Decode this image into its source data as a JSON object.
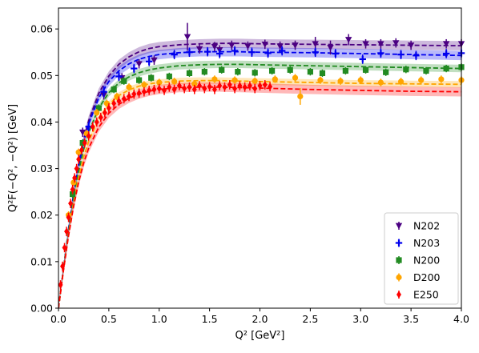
{
  "chart_data": {
    "type": "scatter",
    "title": "",
    "xlabel": "Q² [GeV²]",
    "ylabel": "Q²F(−Q², −Q²) [GeV]",
    "xlim": [
      0.0,
      4.0
    ],
    "ylim": [
      0.0,
      0.0645
    ],
    "xticks": [
      "0.0",
      "0.5",
      "1.0",
      "1.5",
      "2.0",
      "2.5",
      "3.0",
      "3.5",
      "4.0"
    ],
    "yticks": [
      "0.00",
      "0.01",
      "0.02",
      "0.03",
      "0.04",
      "0.05",
      "0.06"
    ],
    "grid": false,
    "legend_position": "lower-right",
    "series": [
      {
        "name": "N202",
        "color": "#4b0082",
        "marker": "triangle-down",
        "points": [
          [
            0.24,
            0.0378
          ],
          [
            0.45,
            0.0458
          ],
          [
            0.63,
            0.0495
          ],
          [
            0.8,
            0.0525
          ],
          [
            0.95,
            0.0533
          ],
          [
            1.28,
            0.0583
          ],
          [
            1.4,
            0.0557
          ],
          [
            1.55,
            0.0562
          ],
          [
            1.6,
            0.0555
          ],
          [
            1.72,
            0.0565
          ],
          [
            1.88,
            0.0563
          ],
          [
            2.05,
            0.0567
          ],
          [
            2.2,
            0.0563
          ],
          [
            2.35,
            0.0565
          ],
          [
            2.55,
            0.0568
          ],
          [
            2.7,
            0.056
          ],
          [
            2.88,
            0.0577
          ],
          [
            3.05,
            0.0568
          ],
          [
            3.2,
            0.0568
          ],
          [
            3.35,
            0.057
          ],
          [
            3.5,
            0.0565
          ],
          [
            3.85,
            0.0568
          ],
          [
            4.0,
            0.0568
          ]
        ],
        "errors": [
          0.001,
          0.001,
          0.001,
          0.001,
          0.001,
          0.003,
          0.001,
          0.001,
          0.001,
          0.001,
          0.001,
          0.001,
          0.001,
          0.001,
          0.0015,
          0.0015,
          0.0012,
          0.001,
          0.001,
          0.001,
          0.001,
          0.001,
          0.001
        ],
        "fit": [
          [
            0.0,
            0.0
          ],
          [
            0.05,
            0.0085
          ],
          [
            0.1,
            0.017
          ],
          [
            0.15,
            0.0245
          ],
          [
            0.2,
            0.031
          ],
          [
            0.25,
            0.0362
          ],
          [
            0.3,
            0.0403
          ],
          [
            0.4,
            0.0462
          ],
          [
            0.5,
            0.0499
          ],
          [
            0.6,
            0.0524
          ],
          [
            0.7,
            0.054
          ],
          [
            0.8,
            0.0551
          ],
          [
            0.9,
            0.0558
          ],
          [
            1.0,
            0.0562
          ],
          [
            1.2,
            0.0566
          ],
          [
            1.4,
            0.0568
          ],
          [
            1.6,
            0.0569
          ],
          [
            1.8,
            0.0569
          ],
          [
            2.0,
            0.0568
          ],
          [
            2.5,
            0.0567
          ],
          [
            3.0,
            0.0566
          ],
          [
            3.5,
            0.0565
          ],
          [
            4.0,
            0.0564
          ]
        ],
        "band": 0.001
      },
      {
        "name": "N203",
        "color": "#0000ee",
        "marker": "plus",
        "points": [
          [
            0.3,
            0.039
          ],
          [
            0.45,
            0.0465
          ],
          [
            0.6,
            0.0498
          ],
          [
            0.75,
            0.0515
          ],
          [
            0.9,
            0.053
          ],
          [
            1.15,
            0.0545
          ],
          [
            1.3,
            0.055
          ],
          [
            1.48,
            0.0551
          ],
          [
            1.6,
            0.0547
          ],
          [
            1.75,
            0.0553
          ],
          [
            1.92,
            0.055
          ],
          [
            2.08,
            0.0548
          ],
          [
            2.22,
            0.0553
          ],
          [
            2.55,
            0.055
          ],
          [
            2.75,
            0.0547
          ],
          [
            3.02,
            0.0535
          ],
          [
            3.2,
            0.0548
          ],
          [
            3.4,
            0.0545
          ],
          [
            3.55,
            0.0543
          ],
          [
            3.85,
            0.0547
          ],
          [
            4.0,
            0.0548
          ]
        ],
        "errors": [
          0.001,
          0.0012,
          0.001,
          0.001,
          0.001,
          0.001,
          0.001,
          0.001,
          0.001,
          0.001,
          0.001,
          0.001,
          0.001,
          0.001,
          0.001,
          0.001,
          0.001,
          0.001,
          0.001,
          0.001,
          0.001
        ],
        "fit": [
          [
            0.0,
            0.0
          ],
          [
            0.05,
            0.0085
          ],
          [
            0.1,
            0.0168
          ],
          [
            0.15,
            0.0242
          ],
          [
            0.2,
            0.0305
          ],
          [
            0.25,
            0.0356
          ],
          [
            0.3,
            0.0396
          ],
          [
            0.4,
            0.0452
          ],
          [
            0.5,
            0.0487
          ],
          [
            0.6,
            0.051
          ],
          [
            0.7,
            0.0525
          ],
          [
            0.8,
            0.0535
          ],
          [
            0.9,
            0.0541
          ],
          [
            1.0,
            0.0545
          ],
          [
            1.2,
            0.0549
          ],
          [
            1.4,
            0.0551
          ],
          [
            1.6,
            0.0551
          ],
          [
            1.8,
            0.0551
          ],
          [
            2.0,
            0.055
          ],
          [
            2.5,
            0.0549
          ],
          [
            3.0,
            0.0547
          ],
          [
            3.5,
            0.0545
          ],
          [
            4.0,
            0.0543
          ]
        ],
        "band": 0.001
      },
      {
        "name": "N200",
        "color": "#228b22",
        "marker": "square",
        "points": [
          [
            0.14,
            0.0245
          ],
          [
            0.24,
            0.0355
          ],
          [
            0.4,
            0.043
          ],
          [
            0.55,
            0.047
          ],
          [
            0.65,
            0.0488
          ],
          [
            0.8,
            0.049
          ],
          [
            0.92,
            0.0495
          ],
          [
            1.1,
            0.0498
          ],
          [
            1.3,
            0.0505
          ],
          [
            1.45,
            0.0508
          ],
          [
            1.62,
            0.0512
          ],
          [
            1.78,
            0.0508
          ],
          [
            1.95,
            0.0506
          ],
          [
            2.12,
            0.051
          ],
          [
            2.3,
            0.0512
          ],
          [
            2.5,
            0.0508
          ],
          [
            2.62,
            0.0505
          ],
          [
            2.85,
            0.051
          ],
          [
            3.05,
            0.0512
          ],
          [
            3.25,
            0.0507
          ],
          [
            3.45,
            0.0513
          ],
          [
            3.65,
            0.051
          ],
          [
            3.85,
            0.0515
          ],
          [
            4.0,
            0.0518
          ]
        ],
        "errors": [
          0.0008,
          0.0008,
          0.0008,
          0.0008,
          0.0008,
          0.0008,
          0.0008,
          0.0008,
          0.0008,
          0.0008,
          0.0008,
          0.0008,
          0.0008,
          0.0008,
          0.0008,
          0.0008,
          0.0008,
          0.0008,
          0.0008,
          0.0008,
          0.0008,
          0.0008,
          0.0008,
          0.0008
        ],
        "fit": [
          [
            0.0,
            0.0
          ],
          [
            0.05,
            0.0085
          ],
          [
            0.1,
            0.0165
          ],
          [
            0.15,
            0.0235
          ],
          [
            0.2,
            0.0294
          ],
          [
            0.25,
            0.0341
          ],
          [
            0.3,
            0.0378
          ],
          [
            0.4,
            0.043
          ],
          [
            0.5,
            0.0463
          ],
          [
            0.6,
            0.0484
          ],
          [
            0.7,
            0.0497
          ],
          [
            0.8,
            0.0506
          ],
          [
            0.9,
            0.0512
          ],
          [
            1.0,
            0.0516
          ],
          [
            1.2,
            0.0521
          ],
          [
            1.4,
            0.0523
          ],
          [
            1.6,
            0.0524
          ],
          [
            1.8,
            0.0524
          ],
          [
            2.0,
            0.0523
          ],
          [
            2.5,
            0.0521
          ],
          [
            3.0,
            0.0519
          ],
          [
            3.5,
            0.0517
          ],
          [
            4.0,
            0.0515
          ]
        ],
        "band": 0.0008
      },
      {
        "name": "D200",
        "color": "#ffa500",
        "marker": "circle",
        "points": [
          [
            0.1,
            0.02
          ],
          [
            0.15,
            0.027
          ],
          [
            0.2,
            0.0335
          ],
          [
            0.28,
            0.0375
          ],
          [
            0.38,
            0.042
          ],
          [
            0.48,
            0.044
          ],
          [
            0.58,
            0.0455
          ],
          [
            0.7,
            0.0475
          ],
          [
            0.85,
            0.048
          ],
          [
            1.0,
            0.0485
          ],
          [
            1.15,
            0.0487
          ],
          [
            1.35,
            0.0482
          ],
          [
            1.55,
            0.0492
          ],
          [
            1.75,
            0.049
          ],
          [
            1.95,
            0.0488
          ],
          [
            2.15,
            0.0492
          ],
          [
            2.35,
            0.0495
          ],
          [
            2.4,
            0.0455
          ],
          [
            2.6,
            0.049
          ],
          [
            2.8,
            0.0488
          ],
          [
            3.0,
            0.049
          ],
          [
            3.2,
            0.0485
          ],
          [
            3.4,
            0.0487
          ],
          [
            3.6,
            0.049
          ],
          [
            3.8,
            0.0492
          ],
          [
            4.0,
            0.049
          ]
        ],
        "errors": [
          0.0008,
          0.0008,
          0.0008,
          0.0008,
          0.0008,
          0.0008,
          0.0008,
          0.0008,
          0.0008,
          0.0008,
          0.0008,
          0.0008,
          0.0008,
          0.0008,
          0.0008,
          0.0008,
          0.0008,
          0.0018,
          0.0008,
          0.0008,
          0.0008,
          0.0008,
          0.0008,
          0.0008,
          0.0008,
          0.0008
        ],
        "fit": [
          [
            0.0,
            0.0
          ],
          [
            0.05,
            0.0083
          ],
          [
            0.1,
            0.016
          ],
          [
            0.15,
            0.0226
          ],
          [
            0.2,
            0.0281
          ],
          [
            0.25,
            0.0325
          ],
          [
            0.3,
            0.0359
          ],
          [
            0.4,
            0.0407
          ],
          [
            0.5,
            0.0438
          ],
          [
            0.6,
            0.0457
          ],
          [
            0.7,
            0.0469
          ],
          [
            0.8,
            0.0477
          ],
          [
            0.9,
            0.0482
          ],
          [
            1.0,
            0.0485
          ],
          [
            1.2,
            0.0488
          ],
          [
            1.4,
            0.0489
          ],
          [
            1.6,
            0.0489
          ],
          [
            1.8,
            0.0488
          ],
          [
            2.0,
            0.0487
          ],
          [
            2.5,
            0.0485
          ],
          [
            3.0,
            0.0483
          ],
          [
            3.5,
            0.0482
          ],
          [
            4.0,
            0.0481
          ]
        ],
        "band": 0.0007
      },
      {
        "name": "E250",
        "color": "#ff0000",
        "marker": "diamond",
        "points": [
          [
            0.02,
            0.005
          ],
          [
            0.04,
            0.009
          ],
          [
            0.06,
            0.013
          ],
          [
            0.08,
            0.0165
          ],
          [
            0.1,
            0.0195
          ],
          [
            0.12,
            0.0225
          ],
          [
            0.14,
            0.0255
          ],
          [
            0.16,
            0.028
          ],
          [
            0.18,
            0.03
          ],
          [
            0.2,
            0.032
          ],
          [
            0.23,
            0.034
          ],
          [
            0.26,
            0.0355
          ],
          [
            0.3,
            0.037
          ],
          [
            0.34,
            0.039
          ],
          [
            0.38,
            0.04
          ],
          [
            0.42,
            0.041
          ],
          [
            0.46,
            0.042
          ],
          [
            0.5,
            0.043
          ],
          [
            0.55,
            0.044
          ],
          [
            0.6,
            0.0445
          ],
          [
            0.65,
            0.045
          ],
          [
            0.7,
            0.0455
          ],
          [
            0.75,
            0.046
          ],
          [
            0.8,
            0.0462
          ],
          [
            0.85,
            0.0465
          ],
          [
            0.9,
            0.0468
          ],
          [
            0.95,
            0.047
          ],
          [
            1.0,
            0.0472
          ],
          [
            1.05,
            0.0468
          ],
          [
            1.1,
            0.0475
          ],
          [
            1.15,
            0.047
          ],
          [
            1.2,
            0.0478
          ],
          [
            1.25,
            0.0472
          ],
          [
            1.3,
            0.0475
          ],
          [
            1.35,
            0.047
          ],
          [
            1.4,
            0.0478
          ],
          [
            1.45,
            0.0472
          ],
          [
            1.5,
            0.0476
          ],
          [
            1.55,
            0.047
          ],
          [
            1.6,
            0.0478
          ],
          [
            1.65,
            0.0475
          ],
          [
            1.7,
            0.048
          ],
          [
            1.75,
            0.0472
          ],
          [
            1.8,
            0.0478
          ],
          [
            1.85,
            0.0475
          ],
          [
            1.9,
            0.0478
          ],
          [
            1.95,
            0.0472
          ],
          [
            2.0,
            0.0478
          ],
          [
            2.05,
            0.048
          ],
          [
            2.1,
            0.0476
          ]
        ],
        "errors": [
          0.001,
          0.001,
          0.001,
          0.001,
          0.001,
          0.001,
          0.001,
          0.001,
          0.001,
          0.001,
          0.001,
          0.001,
          0.001,
          0.001,
          0.001,
          0.001,
          0.001,
          0.001,
          0.001,
          0.001,
          0.001,
          0.001,
          0.001,
          0.001,
          0.001,
          0.001,
          0.001,
          0.001,
          0.001,
          0.001,
          0.001,
          0.001,
          0.001,
          0.001,
          0.001,
          0.001,
          0.001,
          0.001,
          0.001,
          0.001,
          0.001,
          0.001,
          0.001,
          0.001,
          0.001,
          0.001,
          0.001,
          0.001,
          0.001,
          0.001
        ],
        "fit": [
          [
            0.0,
            0.0
          ],
          [
            0.05,
            0.0082
          ],
          [
            0.1,
            0.0156
          ],
          [
            0.15,
            0.0219
          ],
          [
            0.2,
            0.0271
          ],
          [
            0.25,
            0.0312
          ],
          [
            0.3,
            0.0344
          ],
          [
            0.4,
            0.0389
          ],
          [
            0.5,
            0.0419
          ],
          [
            0.6,
            0.0438
          ],
          [
            0.7,
            0.0451
          ],
          [
            0.8,
            0.046
          ],
          [
            0.9,
            0.0466
          ],
          [
            1.0,
            0.047
          ],
          [
            1.2,
            0.0474
          ],
          [
            1.4,
            0.0475
          ],
          [
            1.6,
            0.0475
          ],
          [
            1.8,
            0.0474
          ],
          [
            2.0,
            0.0473
          ],
          [
            2.5,
            0.047
          ],
          [
            3.0,
            0.0468
          ],
          [
            3.5,
            0.0466
          ],
          [
            4.0,
            0.0465
          ]
        ],
        "band": 0.001
      }
    ]
  }
}
